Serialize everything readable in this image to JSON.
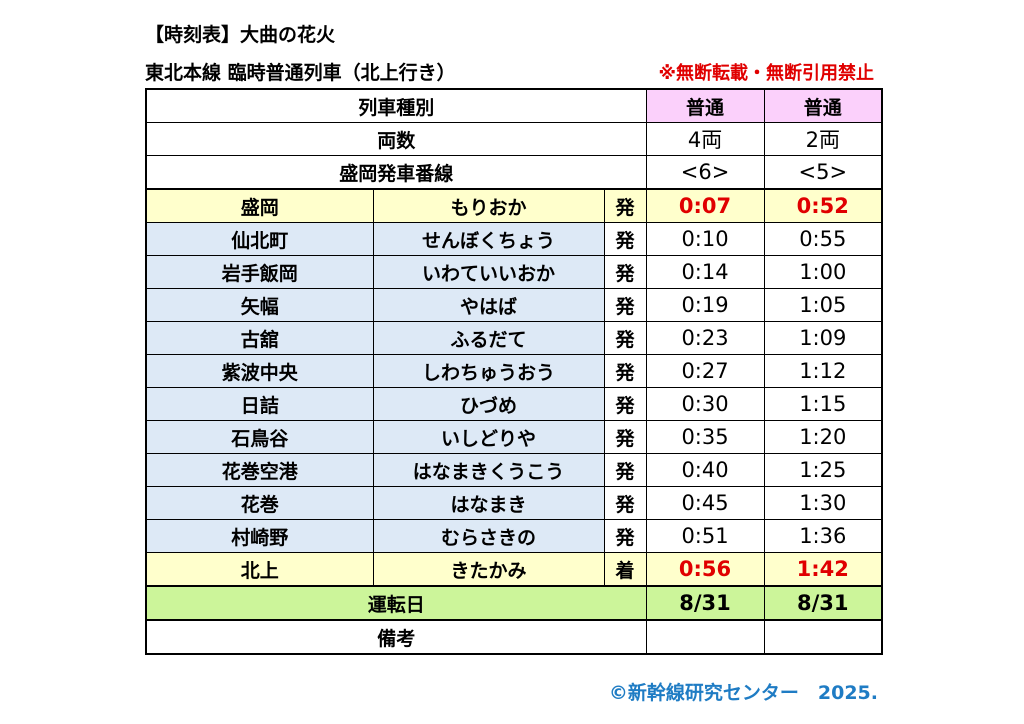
{
  "header": {
    "title": "【時刻表】大曲の花火",
    "subtitle": "東北本線 臨時普通列車（北上行き）",
    "notice": "※無断転載・無断引用禁止"
  },
  "table": {
    "train_type_label": "列車種別",
    "train_types": [
      "普通",
      "普通"
    ],
    "cars_label": "両数",
    "cars": [
      "4両",
      "2両"
    ],
    "platform_label": "盛岡発車番線",
    "platforms": [
      "<6>",
      "<5>"
    ],
    "stations": [
      {
        "name": "盛岡",
        "kana": "もりおか",
        "kind": "発",
        "times": [
          "0:07",
          "0:52"
        ],
        "highlight": true
      },
      {
        "name": "仙北町",
        "kana": "せんぼくちょう",
        "kind": "発",
        "times": [
          "0:10",
          "0:55"
        ]
      },
      {
        "name": "岩手飯岡",
        "kana": "いわていいおか",
        "kind": "発",
        "times": [
          "0:14",
          "1:00"
        ]
      },
      {
        "name": "矢幅",
        "kana": "やはば",
        "kind": "発",
        "times": [
          "0:19",
          "1:05"
        ]
      },
      {
        "name": "古舘",
        "kana": "ふるだて",
        "kind": "発",
        "times": [
          "0:23",
          "1:09"
        ]
      },
      {
        "name": "紫波中央",
        "kana": "しわちゅうおう",
        "kind": "発",
        "times": [
          "0:27",
          "1:12"
        ]
      },
      {
        "name": "日詰",
        "kana": "ひづめ",
        "kind": "発",
        "times": [
          "0:30",
          "1:15"
        ]
      },
      {
        "name": "石鳥谷",
        "kana": "いしどりや",
        "kind": "発",
        "times": [
          "0:35",
          "1:20"
        ]
      },
      {
        "name": "花巻空港",
        "kana": "はなまきくうこう",
        "kind": "発",
        "times": [
          "0:40",
          "1:25"
        ]
      },
      {
        "name": "花巻",
        "kana": "はなまき",
        "kind": "発",
        "times": [
          "0:45",
          "1:30"
        ]
      },
      {
        "name": "村崎野",
        "kana": "むらさきの",
        "kind": "発",
        "times": [
          "0:51",
          "1:36"
        ]
      },
      {
        "name": "北上",
        "kana": "きたかみ",
        "kind": "着",
        "times": [
          "0:56",
          "1:42"
        ],
        "highlight": true
      }
    ],
    "operation_day_label": "運転日",
    "operation_days": [
      "8/31",
      "8/31"
    ],
    "remarks_label": "備考",
    "remarks": [
      "",
      ""
    ]
  },
  "footer": {
    "copyright": "©新幹線研究センター　2025."
  },
  "colors": {
    "accent_red": "#e00000",
    "header_pink": "#fbd0fb",
    "terminal_yellow": "#ffffcc",
    "station_blue": "#dde9f6",
    "day_green": "#ccf59a",
    "footer_blue": "#1f7cc4"
  }
}
